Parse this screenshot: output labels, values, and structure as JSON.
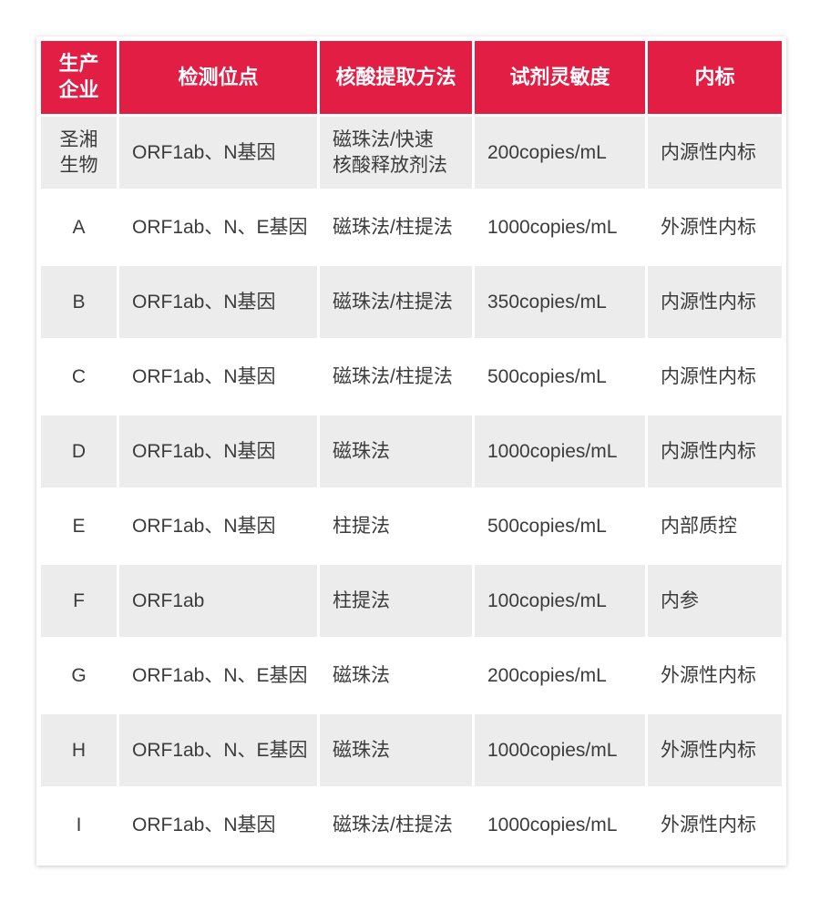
{
  "table": {
    "title_semantic": "covid-nucleic-acid-reagent-comparison",
    "columns": [
      {
        "key": "manufacturer",
        "label": "生产\n企业"
      },
      {
        "key": "target_sites",
        "label": "检测位点"
      },
      {
        "key": "extraction_method",
        "label": "核酸提取方法"
      },
      {
        "key": "sensitivity",
        "label": "试剂灵敏度"
      },
      {
        "key": "internal_control",
        "label": "内标"
      }
    ],
    "rows": [
      [
        "圣湘\n生物",
        "ORF1ab、N基因",
        "磁珠法/快速\n核酸释放剂法",
        "200copies/mL",
        "内源性内标"
      ],
      [
        "A",
        "ORF1ab、N、E基因",
        "磁珠法/柱提法",
        "1000copies/mL",
        "外源性内标"
      ],
      [
        "B",
        "ORF1ab、N基因",
        "磁珠法/柱提法",
        "350copies/mL",
        "内源性内标"
      ],
      [
        "C",
        "ORF1ab、N基因",
        "磁珠法/柱提法",
        "500copies/mL",
        "内源性内标"
      ],
      [
        "D",
        "ORF1ab、N基因",
        "磁珠法",
        "1000copies/mL",
        "内源性内标"
      ],
      [
        "E",
        "ORF1ab、N基因",
        "柱提法",
        "500copies/mL",
        "内部质控"
      ],
      [
        "F",
        "ORF1ab",
        "柱提法",
        "100copies/mL",
        "内参"
      ],
      [
        "G",
        "ORF1ab、N、E基因",
        "磁珠法",
        "200copies/mL",
        "外源性内标"
      ],
      [
        "H",
        "ORF1ab、N、E基因",
        "磁珠法",
        "1000copies/mL",
        "外源性内标"
      ],
      [
        "I",
        "ORF1ab、N基因",
        "磁珠法/柱提法",
        "1000copies/mL",
        "外源性内标"
      ]
    ]
  },
  "colors": {
    "header_bg": "#e31e44",
    "header_text": "#ffffff",
    "row_alt_bg": "#ececec",
    "row_bg": "#ffffff",
    "body_text": "#3b3b3b"
  }
}
